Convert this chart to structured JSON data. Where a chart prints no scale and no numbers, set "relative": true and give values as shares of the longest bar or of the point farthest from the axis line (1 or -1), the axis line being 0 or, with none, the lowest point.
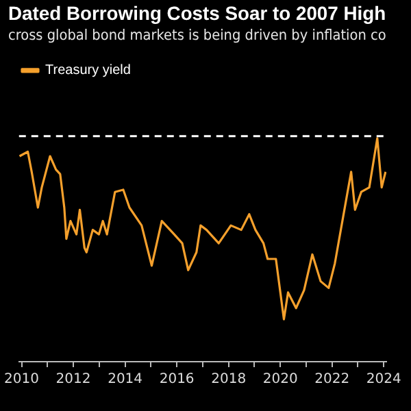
{
  "chart_data": {
    "type": "line",
    "title": "Dated Borrowing Costs Soar to 2007 High",
    "subtitle": "cross global bond markets is being driven by inflation co",
    "relative": true,
    "legend": "top left",
    "marker": "none",
    "line_style": "solid",
    "xlim": [
      2009.9,
      2024.1
    ],
    "xticks": [
      2010,
      {
        "value": 2011,
        "label": null
      },
      2012,
      {
        "value": 2013,
        "label": null
      },
      2014,
      {
        "value": 2015,
        "label": null
      },
      2016,
      {
        "value": 2017,
        "label": null
      },
      2018,
      {
        "value": 2019,
        "label": null
      },
      2020,
      {
        "value": 2021,
        "label": null
      },
      2022,
      {
        "value": 2023,
        "label": null
      },
      2024
    ],
    "ref_lines": [
      {
        "axis": "y",
        "value": 1.01,
        "color": "#ffffff",
        "line_style": "dashed"
      }
    ],
    "series": [
      {
        "name": "Treasury yield",
        "color": "#f5a02c",
        "x": [
          2009.92,
          2010.24,
          2010.39,
          2010.63,
          2010.78,
          2011.1,
          2011.33,
          2011.49,
          2011.65,
          2011.73,
          2011.89,
          2012.12,
          2012.25,
          2012.43,
          2012.51,
          2012.75,
          2012.99,
          2013.14,
          2013.3,
          2013.61,
          2013.93,
          2014.17,
          2014.64,
          2015.03,
          2015.42,
          2015.9,
          2016.21,
          2016.44,
          2016.76,
          2016.92,
          2017.15,
          2017.62,
          2018.09,
          2018.49,
          2018.8,
          2019.04,
          2019.35,
          2019.51,
          2019.83,
          2020.14,
          2020.3,
          2020.61,
          2020.92,
          2021.24,
          2021.56,
          2021.87,
          2022.11,
          2022.34,
          2022.74,
          2022.89,
          2023.13,
          2023.44,
          2023.75,
          2023.92,
          2024.07
        ],
        "values": [
          0.92,
          0.94,
          0.85,
          0.69,
          0.78,
          0.92,
          0.86,
          0.84,
          0.69,
          0.55,
          0.63,
          0.57,
          0.68,
          0.51,
          0.49,
          0.59,
          0.57,
          0.63,
          0.57,
          0.76,
          0.77,
          0.69,
          0.61,
          0.43,
          0.63,
          0.57,
          0.53,
          0.41,
          0.49,
          0.61,
          0.59,
          0.53,
          0.61,
          0.59,
          0.66,
          0.59,
          0.53,
          0.46,
          0.46,
          0.19,
          0.31,
          0.24,
          0.32,
          0.48,
          0.36,
          0.33,
          0.44,
          0.59,
          0.85,
          0.68,
          0.76,
          0.78,
          1.0,
          0.78,
          0.85
        ]
      }
    ]
  }
}
